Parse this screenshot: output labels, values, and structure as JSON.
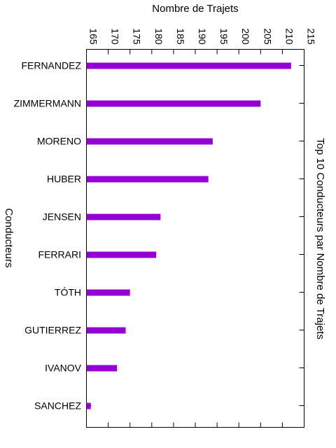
{
  "chart_data": {
    "type": "bar",
    "orientation": "horizontal",
    "title": "Top 10 Conducteurs par Nombre de Trajets",
    "xlabel": "Nombre de Trajets",
    "ylabel": "Conducteurs",
    "xlim": [
      165,
      215
    ],
    "x_ticks": [
      165,
      170,
      175,
      180,
      185,
      190,
      195,
      200,
      205,
      210,
      215
    ],
    "categories": [
      "FERNANDEZ",
      "ZIMMERMANN",
      "MORENO",
      "HUBER",
      "JENSEN",
      "FERRARI",
      "TÓTH",
      "GUTIERREZ",
      "IVANOV",
      "SANCHEZ"
    ],
    "values": [
      212,
      205,
      194,
      193,
      182,
      181,
      175,
      174,
      172,
      166
    ],
    "bar_color": "#9400d3",
    "grid": false,
    "legend": "none"
  }
}
